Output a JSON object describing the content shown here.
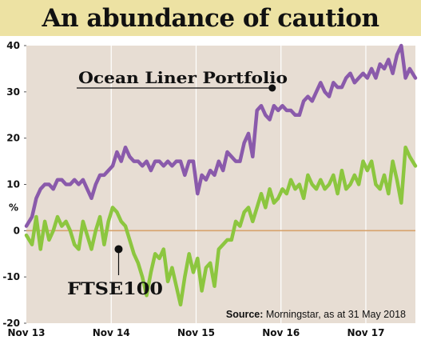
{
  "title": "An abundance of caution",
  "colors": {
    "title_bg": "#ede2a3",
    "plot_bg": "#e7ddd3",
    "portfolio": "#8a5aab",
    "ftse": "#8cc63f",
    "zero_line": "#d7a26b"
  },
  "chart_data": {
    "type": "line",
    "xlim": [
      2013.833,
      2018.417
    ],
    "ylim": [
      -20,
      40
    ],
    "y_ticks": [
      40,
      30,
      20,
      10,
      0,
      -10,
      -20
    ],
    "y_tick_labels": [
      "40",
      "30",
      "20",
      "10",
      "0",
      "-10",
      "-20"
    ],
    "y_unit_label": "%",
    "x_ticks": [
      2013.833,
      2014.833,
      2015.833,
      2016.833,
      2017.833
    ],
    "x_tick_labels": [
      "Nov 13",
      "Nov 14",
      "Nov 15",
      "Nov 16",
      "Nov 17"
    ],
    "grid": "vertical",
    "source": {
      "bold": "Source:",
      "text": " Morningstar, as at 31 May 2018"
    },
    "annotations": [
      {
        "label": "Ocean Liner Portfolio",
        "series": "Ocean Liner Portfolio",
        "x": 2016.73,
        "y": 31
      },
      {
        "label": "FTSE100",
        "series": "FTSE 100",
        "x": 2014.92,
        "y": -4
      }
    ],
    "series": [
      {
        "name": "Ocean Liner Portfolio",
        "x": [
          2013.833,
          2013.9,
          2013.95,
          2014.0,
          2014.05,
          2014.1,
          2014.15,
          2014.2,
          2014.25,
          2014.3,
          2014.35,
          2014.4,
          2014.45,
          2014.5,
          2014.55,
          2014.6,
          2014.65,
          2014.7,
          2014.75,
          2014.8,
          2014.85,
          2014.9,
          2014.95,
          2015.0,
          2015.05,
          2015.1,
          2015.15,
          2015.2,
          2015.25,
          2015.3,
          2015.35,
          2015.4,
          2015.45,
          2015.5,
          2015.55,
          2015.6,
          2015.65,
          2015.7,
          2015.75,
          2015.8,
          2015.85,
          2015.9,
          2015.95,
          2016.0,
          2016.05,
          2016.1,
          2016.15,
          2016.2,
          2016.25,
          2016.3,
          2016.35,
          2016.4,
          2016.45,
          2016.5,
          2016.55,
          2016.6,
          2016.65,
          2016.7,
          2016.75,
          2016.8,
          2016.85,
          2016.9,
          2016.95,
          2017.0,
          2017.05,
          2017.1,
          2017.15,
          2017.2,
          2017.25,
          2017.3,
          2017.35,
          2017.4,
          2017.45,
          2017.5,
          2017.55,
          2017.6,
          2017.65,
          2017.7,
          2017.75,
          2017.8,
          2017.85,
          2017.9,
          2017.95,
          2018.0,
          2018.05,
          2018.1,
          2018.15,
          2018.2,
          2018.25,
          2018.3,
          2018.35,
          2018.417
        ],
        "values": [
          1,
          3,
          7,
          9,
          10,
          10,
          9,
          11,
          11,
          10,
          10,
          11,
          10,
          11,
          9,
          7,
          10,
          12,
          12,
          13,
          14,
          17,
          15,
          18,
          16,
          15,
          15,
          14,
          15,
          13,
          15,
          15,
          14,
          15,
          14,
          15,
          15,
          12,
          15,
          15,
          8,
          12,
          11,
          13,
          12,
          15,
          13,
          17,
          16,
          15,
          15,
          19,
          21,
          16,
          26,
          27,
          25,
          24,
          27,
          26,
          27,
          26,
          26,
          25,
          25,
          28,
          29,
          28,
          30,
          32,
          30,
          29,
          32,
          31,
          31,
          33,
          34,
          32,
          33,
          34,
          33,
          35,
          33,
          36,
          35,
          37,
          34,
          38,
          40,
          33,
          35,
          33
        ]
      },
      {
        "name": "FTSE 100",
        "x": [
          2013.833,
          2013.9,
          2013.95,
          2014.0,
          2014.05,
          2014.1,
          2014.15,
          2014.2,
          2014.25,
          2014.3,
          2014.35,
          2014.4,
          2014.45,
          2014.5,
          2014.55,
          2014.6,
          2014.65,
          2014.7,
          2014.75,
          2014.8,
          2014.85,
          2014.9,
          2014.95,
          2015.0,
          2015.05,
          2015.1,
          2015.15,
          2015.2,
          2015.25,
          2015.3,
          2015.35,
          2015.4,
          2015.45,
          2015.5,
          2015.55,
          2015.6,
          2015.65,
          2015.7,
          2015.75,
          2015.8,
          2015.85,
          2015.9,
          2015.95,
          2016.0,
          2016.05,
          2016.1,
          2016.15,
          2016.2,
          2016.25,
          2016.3,
          2016.35,
          2016.4,
          2016.45,
          2016.5,
          2016.55,
          2016.6,
          2016.65,
          2016.7,
          2016.75,
          2016.8,
          2016.85,
          2016.9,
          2016.95,
          2017.0,
          2017.05,
          2017.1,
          2017.15,
          2017.2,
          2017.25,
          2017.3,
          2017.35,
          2017.4,
          2017.45,
          2017.5,
          2017.55,
          2017.6,
          2017.65,
          2017.7,
          2017.75,
          2017.8,
          2017.85,
          2017.9,
          2017.95,
          2018.0,
          2018.05,
          2018.1,
          2018.15,
          2018.2,
          2018.25,
          2018.3,
          2018.35,
          2018.417
        ],
        "values": [
          -1,
          -3,
          3,
          -4,
          2,
          -2,
          0,
          3,
          1,
          2,
          0,
          -3,
          -4,
          2,
          -1,
          -4,
          0,
          3,
          -3,
          2,
          5,
          4,
          2,
          1,
          -2,
          -5,
          -7,
          -10,
          -14,
          -9,
          -5,
          -6,
          -4,
          -11,
          -8,
          -12,
          -16,
          -10,
          -5,
          -9,
          -6,
          -13,
          -8,
          -7,
          -12,
          -4,
          -3,
          -2,
          -2,
          2,
          1,
          4,
          5,
          2,
          5,
          8,
          5,
          9,
          6,
          7,
          9,
          8,
          11,
          9,
          10,
          7,
          12,
          10,
          9,
          11,
          9,
          10,
          12,
          8,
          13,
          9,
          10,
          12,
          10,
          15,
          13,
          15,
          10,
          9,
          12,
          8,
          15,
          11,
          6,
          18,
          16,
          14
        ]
      }
    ]
  }
}
